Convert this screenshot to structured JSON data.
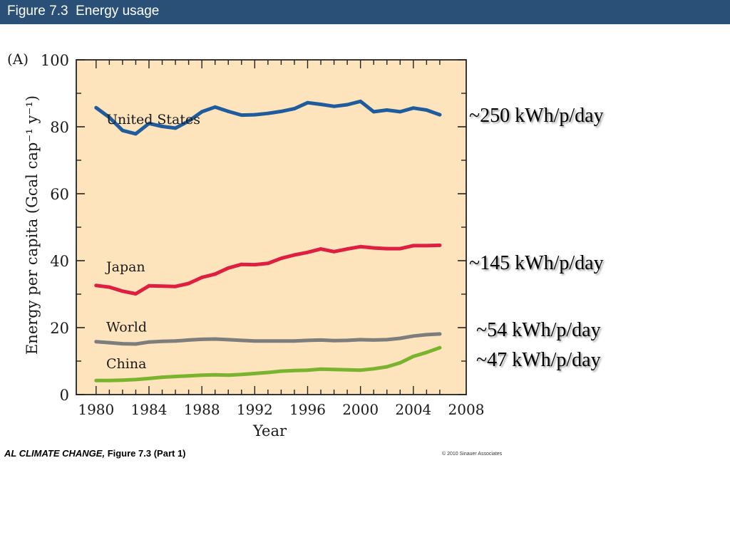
{
  "slide": {
    "title": "Figure 7.3  Energy usage",
    "caption_prefix": "AL CLIMATE CHANGE,",
    "caption_suffix": " Figure 7.3 (Part 1)",
    "copyright": "© 2010 Sinauer Associates"
  },
  "colors": {
    "title_bar": "#2a5078",
    "plot_background": "#fde4bd",
    "united_states": "#1f5c9e",
    "japan": "#de1f41",
    "world": "#7d7d7d",
    "china": "#7ab32e"
  },
  "annotations": [
    "~250 kWh/p/day",
    "~145 kWh/p/day",
    "~54 kWh/p/day",
    "~47 kWh/p/day"
  ],
  "chart_data": {
    "type": "line",
    "panel_label": "(A)",
    "title": "",
    "xlabel": "Year",
    "ylabel": "Energy per capita (Gcal cap⁻¹ y⁻¹)",
    "xlim": [
      1978.5,
      2008
    ],
    "ylim": [
      0,
      100
    ],
    "x_ticks": [
      1980,
      1984,
      1988,
      1992,
      1996,
      2000,
      2004,
      2008
    ],
    "y_ticks": [
      0,
      20,
      40,
      60,
      80,
      100
    ],
    "grid": false,
    "x": [
      1980,
      1981,
      1982,
      1983,
      1984,
      1985,
      1986,
      1987,
      1988,
      1989,
      1990,
      1991,
      1992,
      1993,
      1994,
      1995,
      1996,
      1997,
      1998,
      1999,
      2000,
      2001,
      2002,
      2003,
      2004,
      2005,
      2006
    ],
    "series": [
      {
        "name": "United States",
        "color_key": "united_states",
        "values": [
          85.7,
          82.8,
          78.9,
          77.9,
          81.0,
          80.1,
          79.6,
          81.7,
          84.5,
          85.9,
          84.6,
          83.5,
          83.6,
          84.0,
          84.6,
          85.4,
          87.2,
          86.7,
          86.1,
          86.6,
          87.6,
          84.5,
          85.0,
          84.5,
          85.6,
          85.0,
          83.6
        ]
      },
      {
        "name": "Japan",
        "color_key": "japan",
        "values": [
          32.6,
          32.1,
          30.9,
          30.1,
          32.5,
          32.4,
          32.3,
          33.2,
          35.0,
          36.0,
          37.8,
          38.9,
          38.8,
          39.2,
          40.7,
          41.7,
          42.5,
          43.5,
          42.7,
          43.5,
          44.2,
          43.8,
          43.6,
          43.6,
          44.5,
          44.5,
          44.6
        ]
      },
      {
        "name": "World",
        "color_key": "world",
        "values": [
          15.8,
          15.5,
          15.2,
          15.1,
          15.7,
          15.9,
          16.0,
          16.3,
          16.5,
          16.6,
          16.4,
          16.2,
          16.0,
          16.0,
          16.0,
          16.0,
          16.2,
          16.3,
          16.1,
          16.2,
          16.4,
          16.3,
          16.4,
          16.8,
          17.5,
          17.9,
          18.1
        ]
      },
      {
        "name": "China",
        "color_key": "china",
        "values": [
          4.2,
          4.2,
          4.3,
          4.5,
          4.8,
          5.2,
          5.4,
          5.6,
          5.8,
          5.9,
          5.8,
          6.0,
          6.3,
          6.6,
          7.0,
          7.2,
          7.3,
          7.6,
          7.5,
          7.4,
          7.3,
          7.7,
          8.3,
          9.5,
          11.4,
          12.6,
          14.0
        ]
      }
    ]
  }
}
